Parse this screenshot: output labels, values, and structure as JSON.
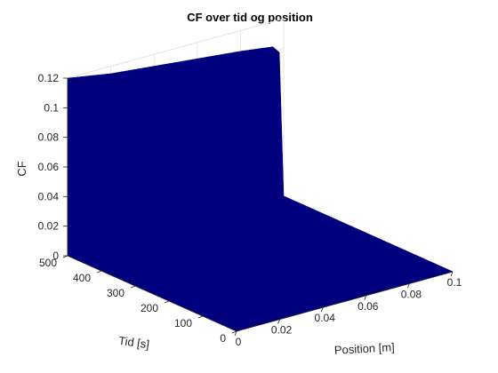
{
  "chart_data": {
    "type": "surface",
    "title": "CF over tid og position",
    "xlabel": "Position [m]",
    "ylabel": "Tid [s]",
    "zlabel": "CF",
    "xlim": [
      0,
      0.1
    ],
    "ylim": [
      0,
      500
    ],
    "zlim": [
      0,
      0.12
    ],
    "x_ticks": [
      "0",
      "0.02",
      "0.04",
      "0.06",
      "0.08",
      "0.1"
    ],
    "y_ticks": [
      "0",
      "100",
      "200",
      "300",
      "400",
      "500"
    ],
    "z_ticks": [
      "0",
      "0.02",
      "0.04",
      "0.06",
      "0.08",
      "0.1",
      "0.12"
    ],
    "x_tick_values": [
      0,
      0.02,
      0.04,
      0.06,
      0.08,
      0.1
    ],
    "y_tick_values": [
      0,
      100,
      200,
      300,
      400,
      500
    ],
    "z_tick_values": [
      0,
      0.02,
      0.04,
      0.06,
      0.08,
      0.1,
      0.12
    ],
    "surface_profile": {
      "description_values": "CF at t=500 across position",
      "x": [
        0,
        0.02,
        0.04,
        0.06,
        0.08,
        0.095,
        0.098,
        0.1
      ],
      "z": [
        0.12,
        0.115,
        0.112,
        0.109,
        0.106,
        0.103,
        0.098,
        0.0
      ]
    },
    "surface_color": "#00007f",
    "grid": true
  }
}
